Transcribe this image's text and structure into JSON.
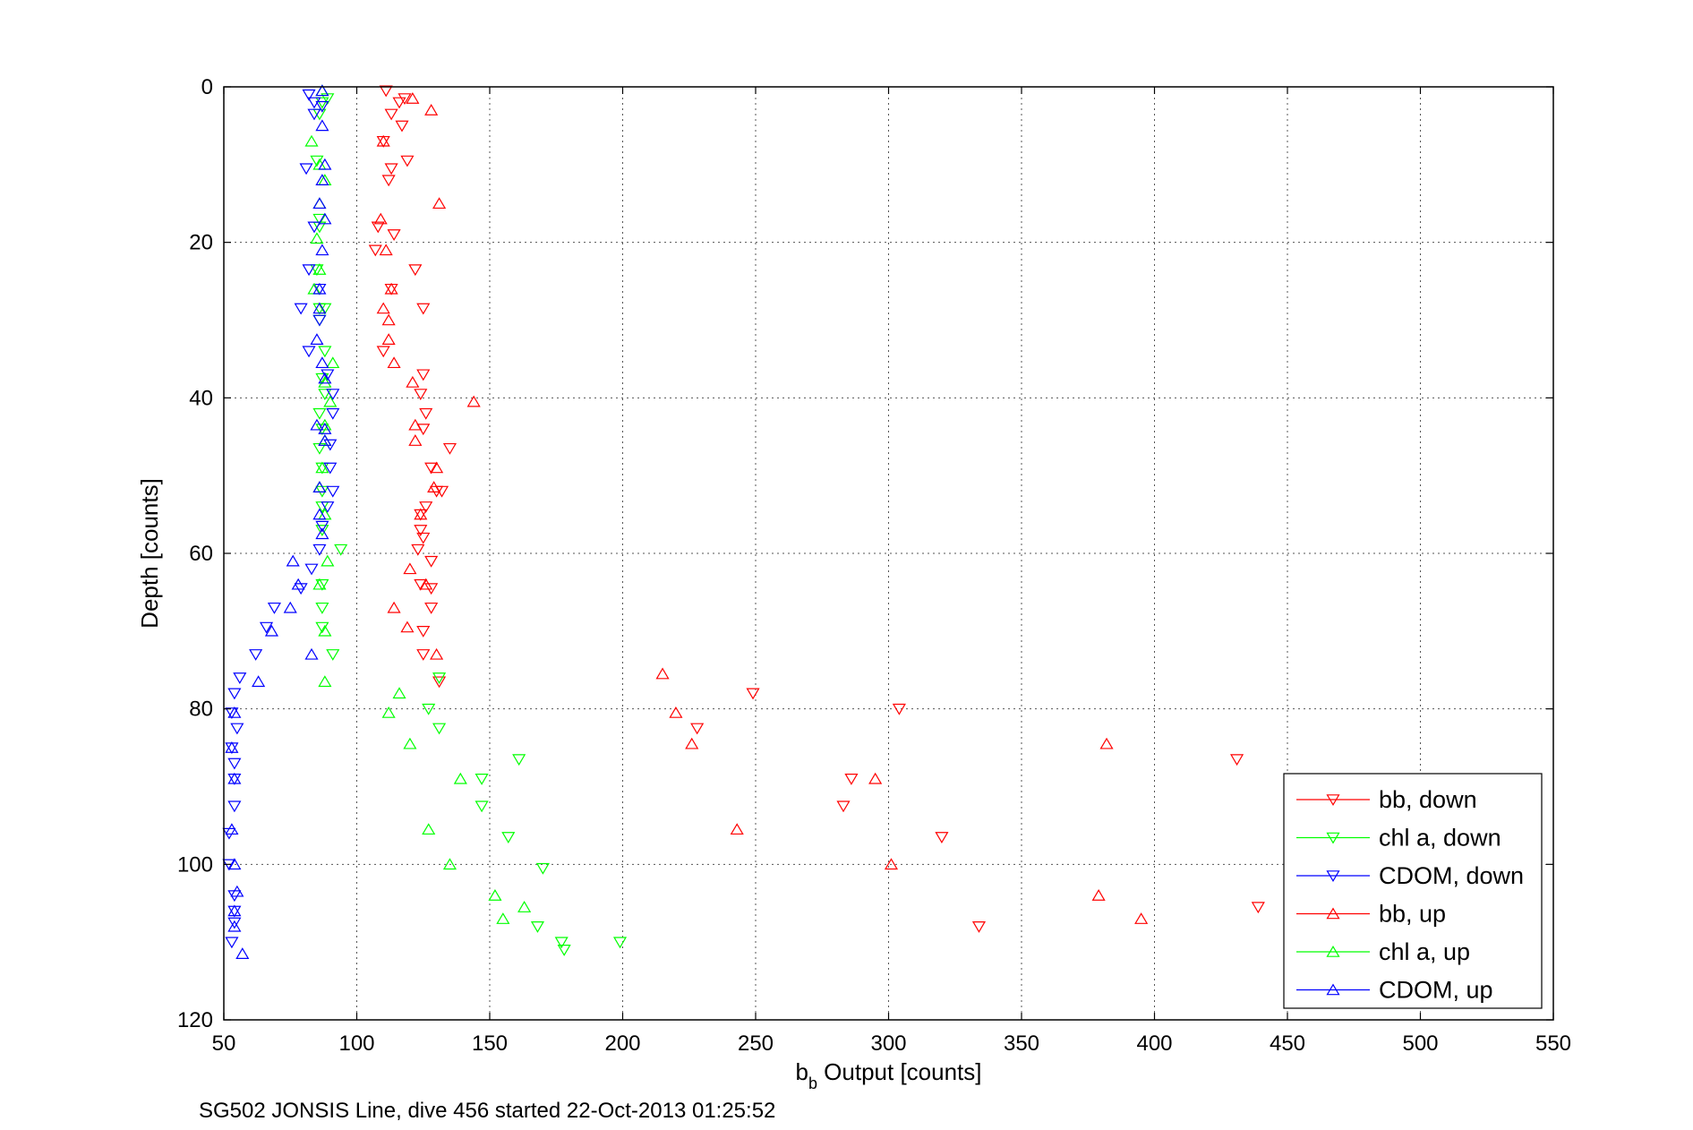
{
  "chart_data": {
    "type": "scatter",
    "xlabel_main": "b",
    "xlabel_sub": "b",
    "xlabel_rest": " Output [counts]",
    "ylabel": "Depth [counts]",
    "caption": "SG502 JONSIS Line, dive 456 started 22-Oct-2013 01:25:52",
    "xlim": [
      50,
      550
    ],
    "ylim": [
      0,
      120
    ],
    "y_reversed": true,
    "grid": true,
    "legend_position": "bottom-right",
    "xticks": [
      50,
      100,
      150,
      200,
      250,
      300,
      350,
      400,
      450,
      500,
      550
    ],
    "yticks": [
      0,
      20,
      40,
      60,
      80,
      100,
      120
    ],
    "series": [
      {
        "name": "bb, down",
        "color": "#ff0000",
        "marker": "triangle-down",
        "points": [
          [
            111,
            0.5
          ],
          [
            118,
            1.5
          ],
          [
            116,
            2
          ],
          [
            113,
            3.5
          ],
          [
            117,
            5
          ],
          [
            110,
            7
          ],
          [
            119,
            9.5
          ],
          [
            113,
            10.5
          ],
          [
            112,
            12
          ],
          [
            108,
            18
          ],
          [
            114,
            19
          ],
          [
            107,
            21
          ],
          [
            122,
            23.5
          ],
          [
            113,
            26
          ],
          [
            125,
            28.5
          ],
          [
            110,
            34
          ],
          [
            125,
            37
          ],
          [
            124,
            39.5
          ],
          [
            126,
            42
          ],
          [
            125,
            44
          ],
          [
            135,
            46.5
          ],
          [
            128,
            49
          ],
          [
            130,
            52
          ],
          [
            132,
            52
          ],
          [
            126,
            54
          ],
          [
            124,
            55
          ],
          [
            124,
            57
          ],
          [
            125,
            58
          ],
          [
            123,
            59.5
          ],
          [
            128,
            61
          ],
          [
            124,
            64
          ],
          [
            128,
            64.5
          ],
          [
            128,
            67
          ],
          [
            125,
            70
          ],
          [
            125,
            73
          ],
          [
            131,
            76.5
          ],
          [
            249,
            78
          ],
          [
            304,
            80
          ],
          [
            228,
            82.5
          ],
          [
            286,
            89
          ],
          [
            283,
            92.5
          ],
          [
            320,
            96.5
          ],
          [
            334,
            108
          ],
          [
            431,
            86.5
          ],
          [
            439,
            105.5
          ]
        ]
      },
      {
        "name": "chl a, down",
        "color": "#00ff00",
        "marker": "triangle-down",
        "points": [
          [
            89,
            1.5
          ],
          [
            87,
            2
          ],
          [
            86,
            3.5
          ],
          [
            85,
            9.5
          ],
          [
            86,
            17
          ],
          [
            86,
            18
          ],
          [
            85,
            23.5
          ],
          [
            86,
            28.5
          ],
          [
            88,
            28.5
          ],
          [
            86,
            30
          ],
          [
            88,
            34
          ],
          [
            87,
            37.5
          ],
          [
            88,
            39.5
          ],
          [
            86,
            42
          ],
          [
            87,
            44
          ],
          [
            86,
            46.5
          ],
          [
            87,
            49
          ],
          [
            87,
            52
          ],
          [
            87,
            54
          ],
          [
            87,
            57
          ],
          [
            94,
            59.5
          ],
          [
            87,
            64
          ],
          [
            87,
            67
          ],
          [
            87,
            69.5
          ],
          [
            91,
            73
          ],
          [
            131,
            76
          ],
          [
            127,
            80
          ],
          [
            131,
            82.5
          ],
          [
            161,
            86.5
          ],
          [
            147,
            89
          ],
          [
            147,
            92.5
          ],
          [
            157,
            96.5
          ],
          [
            170,
            100.5
          ],
          [
            168,
            108
          ],
          [
            177,
            110
          ],
          [
            178,
            111
          ],
          [
            199,
            110
          ]
        ]
      },
      {
        "name": "CDOM, down",
        "color": "#0000ff",
        "marker": "triangle-down",
        "points": [
          [
            82,
            1
          ],
          [
            84,
            2
          ],
          [
            87,
            2.5
          ],
          [
            84,
            3.5
          ],
          [
            81,
            10.5
          ],
          [
            84,
            18
          ],
          [
            82,
            23.5
          ],
          [
            86,
            26
          ],
          [
            79,
            28.5
          ],
          [
            86,
            30
          ],
          [
            82,
            34
          ],
          [
            89,
            37
          ],
          [
            91,
            39.5
          ],
          [
            91,
            42
          ],
          [
            90,
            46
          ],
          [
            90,
            49
          ],
          [
            91,
            52
          ],
          [
            89,
            54
          ],
          [
            87,
            56.5
          ],
          [
            86,
            59.5
          ],
          [
            83,
            62
          ],
          [
            79,
            64.5
          ],
          [
            69,
            67
          ],
          [
            66,
            69.5
          ],
          [
            62,
            73
          ],
          [
            56,
            76
          ],
          [
            54,
            78
          ],
          [
            53,
            80.5
          ],
          [
            55,
            82.5
          ],
          [
            53,
            85
          ],
          [
            54,
            87
          ],
          [
            54,
            89
          ],
          [
            54,
            92.5
          ],
          [
            52,
            96
          ],
          [
            52,
            100
          ],
          [
            54,
            104
          ],
          [
            54,
            106
          ],
          [
            54,
            107.5
          ],
          [
            53,
            110
          ]
        ]
      },
      {
        "name": "bb, up",
        "color": "#ff0000",
        "marker": "triangle-up",
        "points": [
          [
            121,
            1.5
          ],
          [
            128,
            3
          ],
          [
            110,
            7
          ],
          [
            131,
            15
          ],
          [
            109,
            17
          ],
          [
            111,
            21
          ],
          [
            113,
            26
          ],
          [
            110,
            28.5
          ],
          [
            112,
            30
          ],
          [
            112,
            32.5
          ],
          [
            114,
            35.5
          ],
          [
            121,
            38
          ],
          [
            144,
            40.5
          ],
          [
            122,
            43.5
          ],
          [
            122,
            45.5
          ],
          [
            130,
            49
          ],
          [
            129,
            51.5
          ],
          [
            124,
            55
          ],
          [
            120,
            62
          ],
          [
            126,
            64
          ],
          [
            114,
            67
          ],
          [
            119,
            69.5
          ],
          [
            130,
            73
          ],
          [
            215,
            75.5
          ],
          [
            220,
            80.5
          ],
          [
            226,
            84.5
          ],
          [
            295,
            89
          ],
          [
            243,
            95.5
          ],
          [
            301,
            100
          ],
          [
            382,
            84.5
          ],
          [
            379,
            104
          ],
          [
            395,
            107
          ]
        ]
      },
      {
        "name": "chl a, up",
        "color": "#00ff00",
        "marker": "triangle-up",
        "points": [
          [
            87,
            0.5
          ],
          [
            83,
            7
          ],
          [
            86,
            10
          ],
          [
            88,
            12
          ],
          [
            86,
            15
          ],
          [
            85,
            19.5
          ],
          [
            86,
            23.5
          ],
          [
            84,
            26
          ],
          [
            91,
            35.5
          ],
          [
            88,
            38
          ],
          [
            90,
            40.5
          ],
          [
            88,
            43.5
          ],
          [
            88,
            45.5
          ],
          [
            87,
            49
          ],
          [
            86,
            51.5
          ],
          [
            88,
            55
          ],
          [
            89,
            61
          ],
          [
            86,
            64
          ],
          [
            88,
            70
          ],
          [
            88,
            76.5
          ],
          [
            116,
            78
          ],
          [
            112,
            80.5
          ],
          [
            120,
            84.5
          ],
          [
            139,
            89
          ],
          [
            127,
            95.5
          ],
          [
            135,
            100
          ],
          [
            152,
            104
          ],
          [
            163,
            105.5
          ],
          [
            155,
            107
          ]
        ]
      },
      {
        "name": "CDOM, up",
        "color": "#0000ff",
        "marker": "triangle-up",
        "points": [
          [
            87,
            0.5
          ],
          [
            87,
            5
          ],
          [
            88,
            10
          ],
          [
            87,
            12
          ],
          [
            86,
            15
          ],
          [
            88,
            17
          ],
          [
            87,
            21
          ],
          [
            86,
            26
          ],
          [
            86,
            28.5
          ],
          [
            85,
            32.5
          ],
          [
            87,
            35.5
          ],
          [
            88,
            37.5
          ],
          [
            85,
            43.5
          ],
          [
            88,
            44
          ],
          [
            88,
            45.5
          ],
          [
            86,
            51.5
          ],
          [
            86,
            55
          ],
          [
            87,
            57.5
          ],
          [
            76,
            61
          ],
          [
            78,
            64
          ],
          [
            75,
            67
          ],
          [
            68,
            70
          ],
          [
            83,
            73
          ],
          [
            63,
            76.5
          ],
          [
            54,
            80.5
          ],
          [
            53,
            85
          ],
          [
            54,
            89
          ],
          [
            53,
            95.5
          ],
          [
            54,
            100
          ],
          [
            55,
            103.5
          ],
          [
            54,
            106
          ],
          [
            54,
            108
          ],
          [
            57,
            111.5
          ]
        ]
      }
    ]
  }
}
